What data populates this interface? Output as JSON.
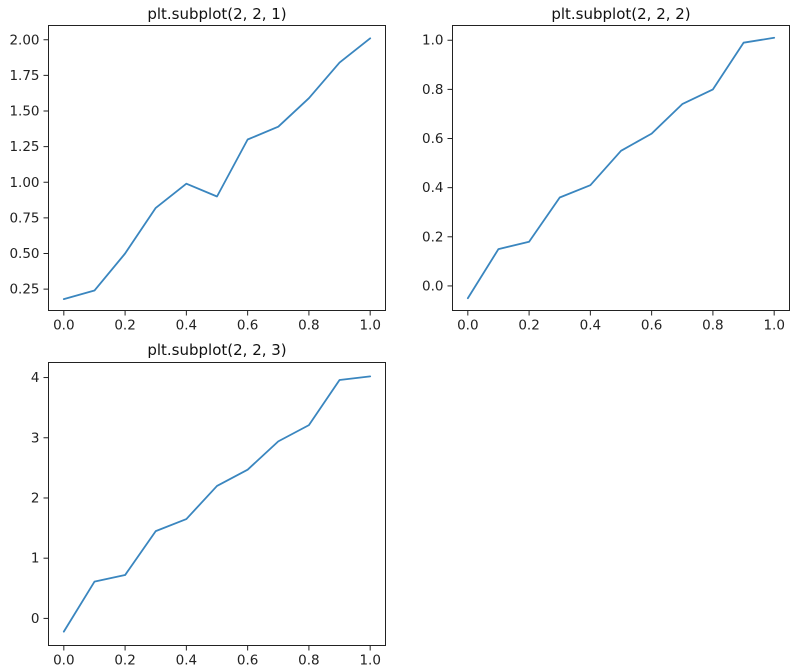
{
  "colors": {
    "series": "#3a86bf",
    "axis": "#222222",
    "background": "#ffffff"
  },
  "chart_data": [
    {
      "type": "line",
      "title": "plt.subplot(2, 2, 1)",
      "xlabel": "",
      "ylabel": "",
      "xlim": [
        -0.05,
        1.05
      ],
      "ylim": [
        0.1,
        2.1
      ],
      "x": [
        0.0,
        0.1,
        0.2,
        0.3,
        0.4,
        0.5,
        0.6,
        0.7,
        0.8,
        0.9,
        1.0
      ],
      "series": [
        {
          "values": [
            0.18,
            0.24,
            0.5,
            0.82,
            0.99,
            0.9,
            1.3,
            1.39,
            1.59,
            1.84,
            2.01
          ]
        }
      ],
      "xticks": [
        0.0,
        0.2,
        0.4,
        0.6,
        0.8,
        1.0
      ],
      "xtick_labels": [
        "0.0",
        "0.2",
        "0.4",
        "0.6",
        "0.8",
        "1.0"
      ],
      "yticks": [
        0.25,
        0.5,
        0.75,
        1.0,
        1.25,
        1.5,
        1.75,
        2.0
      ],
      "ytick_labels": [
        "0.25",
        "0.50",
        "0.75",
        "1.00",
        "1.25",
        "1.50",
        "1.75",
        "2.00"
      ],
      "grid": false
    },
    {
      "type": "line",
      "title": "plt.subplot(2, 2, 2)",
      "xlabel": "",
      "ylabel": "",
      "xlim": [
        -0.05,
        1.05
      ],
      "ylim": [
        -0.1,
        1.06
      ],
      "x": [
        0.0,
        0.1,
        0.2,
        0.3,
        0.4,
        0.5,
        0.6,
        0.7,
        0.8,
        0.9,
        1.0
      ],
      "series": [
        {
          "values": [
            -0.05,
            0.15,
            0.18,
            0.36,
            0.41,
            0.55,
            0.62,
            0.74,
            0.8,
            0.99,
            1.01
          ]
        }
      ],
      "xticks": [
        0.0,
        0.2,
        0.4,
        0.6,
        0.8,
        1.0
      ],
      "xtick_labels": [
        "0.0",
        "0.2",
        "0.4",
        "0.6",
        "0.8",
        "1.0"
      ],
      "yticks": [
        0.0,
        0.2,
        0.4,
        0.6,
        0.8,
        1.0
      ],
      "ytick_labels": [
        "0.0",
        "0.2",
        "0.4",
        "0.6",
        "0.8",
        "1.0"
      ],
      "grid": false
    },
    {
      "type": "line",
      "title": "plt.subplot(2, 2, 3)",
      "xlabel": "",
      "ylabel": "",
      "xlim": [
        -0.05,
        1.05
      ],
      "ylim": [
        -0.45,
        4.25
      ],
      "x": [
        0.0,
        0.1,
        0.2,
        0.3,
        0.4,
        0.5,
        0.6,
        0.7,
        0.8,
        0.9,
        1.0
      ],
      "series": [
        {
          "values": [
            -0.22,
            0.61,
            0.72,
            1.45,
            1.65,
            2.2,
            2.47,
            2.94,
            3.21,
            3.96,
            4.02
          ]
        }
      ],
      "xticks": [
        0.0,
        0.2,
        0.4,
        0.6,
        0.8,
        1.0
      ],
      "xtick_labels": [
        "0.0",
        "0.2",
        "0.4",
        "0.6",
        "0.8",
        "1.0"
      ],
      "yticks": [
        0,
        1,
        2,
        3,
        4
      ],
      "ytick_labels": [
        "0",
        "1",
        "2",
        "3",
        "4"
      ],
      "grid": false
    }
  ]
}
